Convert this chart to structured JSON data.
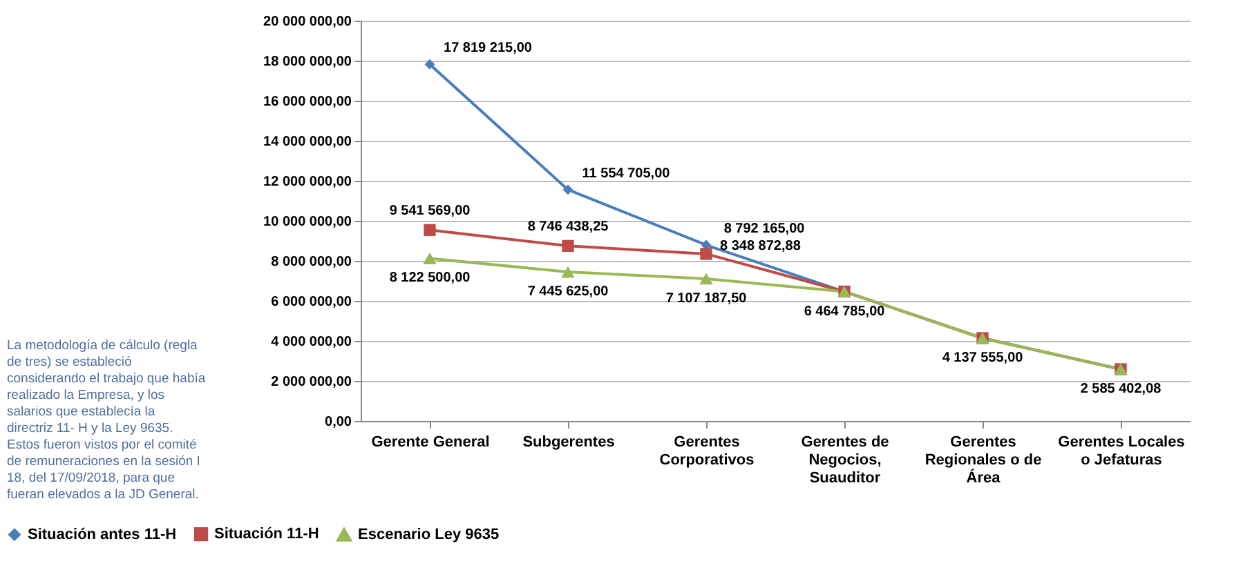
{
  "chart_data": {
    "type": "line",
    "categories": [
      "Gerente General",
      "Subgerentes",
      "Gerentes Corporativos",
      "Gerentes de Negocios, Suauditor",
      "Gerentes Regionales o de Área",
      "Gerentes Locales o Jefaturas"
    ],
    "series": [
      {
        "name": "Situación antes 11-H",
        "color": "#4a7ebb",
        "marker": "diamond",
        "values": [
          17819215,
          11554705,
          8792165,
          6464785,
          4137555,
          2585402.08
        ],
        "value_labels": [
          "17 819 215,00",
          "11 554 705,00",
          "8 792 165,00",
          null,
          null,
          null
        ]
      },
      {
        "name": "Situación 11-H",
        "color": "#be4b48",
        "marker": "square",
        "values": [
          9541569,
          8746438.25,
          8348872.88,
          6464785,
          4137555,
          2585402.08
        ],
        "value_labels": [
          "9 541 569,00",
          "8 746 438,25",
          "8 348 872,88",
          null,
          null,
          null
        ]
      },
      {
        "name": "Escenario Ley 9635",
        "color": "#98b954",
        "marker": "triangle",
        "values": [
          8122500,
          7445625,
          7107187.5,
          6464785,
          4137555,
          2585402.08
        ],
        "value_labels": [
          "8 122 500,00",
          "7 445 625,00",
          "7 107 187,50",
          "6 464 785,00",
          "4 137 555,00",
          "2 585 402,08"
        ]
      }
    ],
    "ylim": [
      0,
      20000000
    ],
    "yticks": [
      {
        "value": 0,
        "label": "0,00"
      },
      {
        "value": 2000000,
        "label": "2 000 000,00"
      },
      {
        "value": 4000000,
        "label": "4 000 000,00"
      },
      {
        "value": 6000000,
        "label": "6 000 000,00"
      },
      {
        "value": 8000000,
        "label": "8 000 000,00"
      },
      {
        "value": 10000000,
        "label": "10 000 000,00"
      },
      {
        "value": 12000000,
        "label": "12 000 000,00"
      },
      {
        "value": 14000000,
        "label": "14 000 000,00"
      },
      {
        "value": 16000000,
        "label": "16 000 000,00"
      },
      {
        "value": 18000000,
        "label": "18 000 000,00"
      },
      {
        "value": 20000000,
        "label": "20 000 000,00"
      }
    ],
    "grid": "y",
    "legend": "bottom",
    "line_style": "solid",
    "annotations": [
      "La metodología de cálculo (regla de tres) se estableció considerando el trabajo que había realizado la Empresa, y los salarios que establecía la directriz 11- H y la Ley 9635. Estos fueron vistos por el comité de remuneraciones en la sesión I 18, del 17/09/2018, para que fueran elevados a la JD General."
    ]
  }
}
